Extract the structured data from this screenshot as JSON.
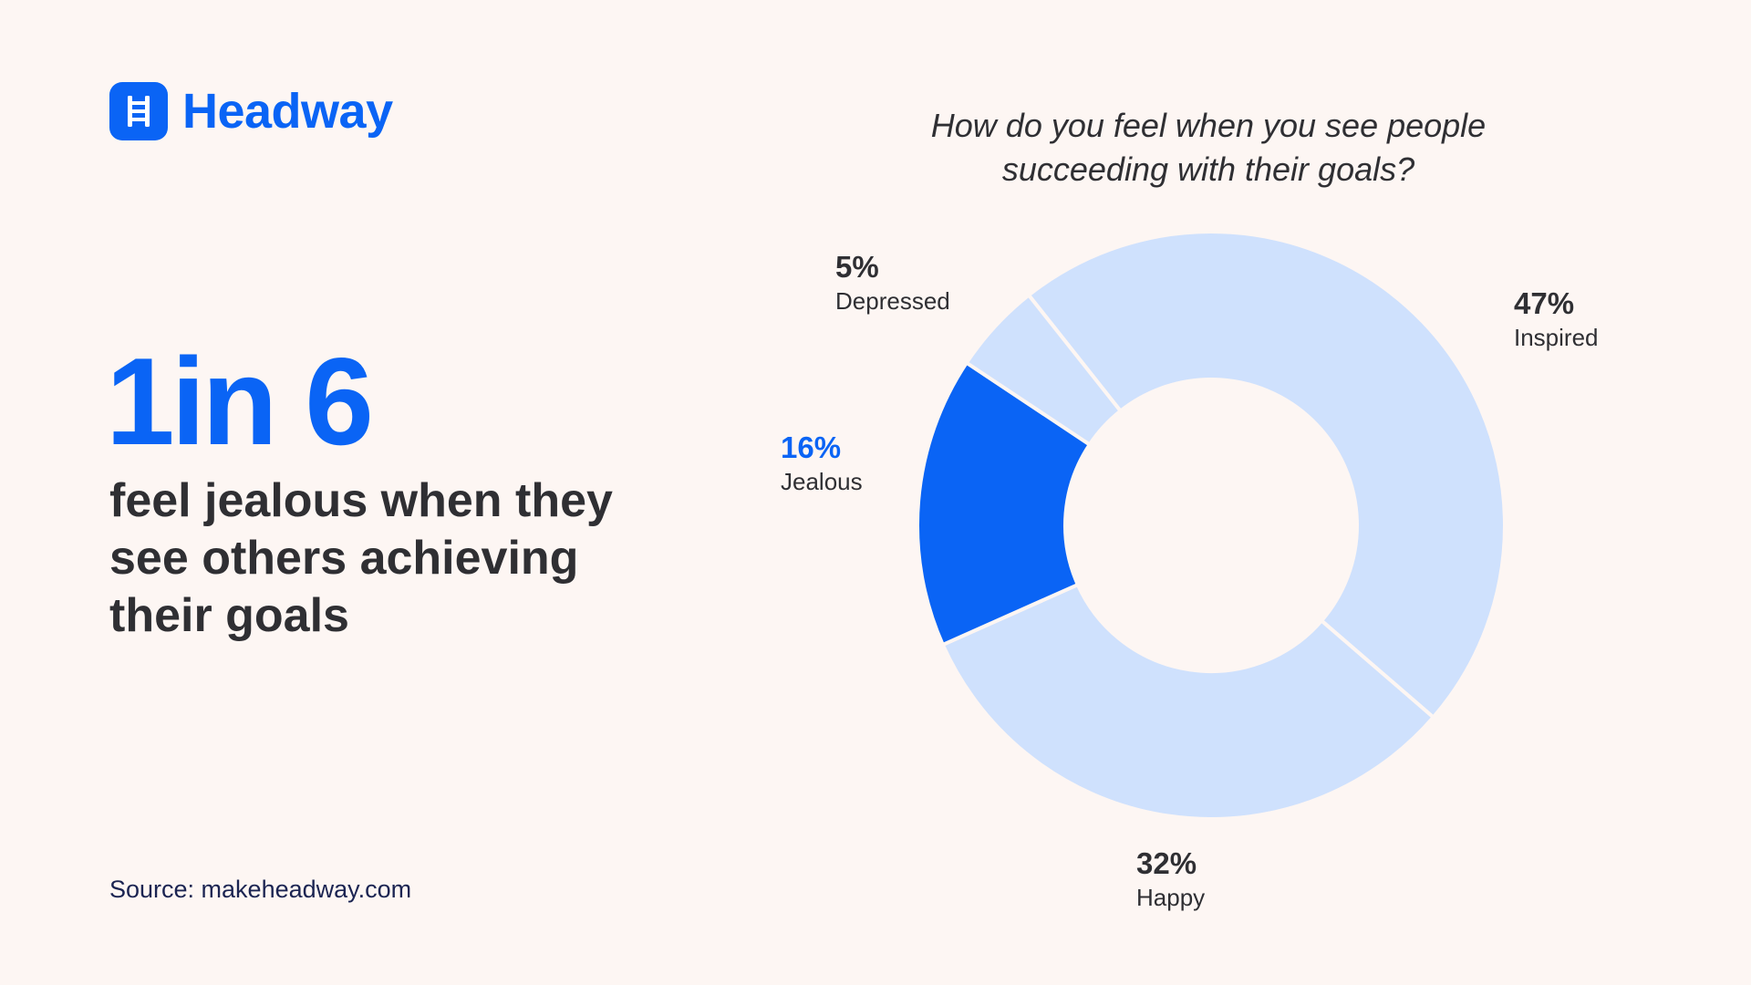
{
  "brand": {
    "name": "Headway",
    "icon": "ladder-icon",
    "color": "#0a64f5"
  },
  "headline": {
    "stat": "1in 6",
    "text": "feel jealous when they see others achieving their goals"
  },
  "source": "Source: makeheadway.com",
  "chart_data": {
    "type": "pie",
    "variant": "donut",
    "title": "How do you feel when you see people succeeding with their goals?",
    "slices": [
      {
        "label": "Inspired",
        "value": 47,
        "display": "47%",
        "color": "#cfe1fd"
      },
      {
        "label": "Happy",
        "value": 32,
        "display": "32%",
        "color": "#cfe1fd"
      },
      {
        "label": "Jealous",
        "value": 16,
        "display": "16%",
        "color": "#0a64f5",
        "highlight": true
      },
      {
        "label": "Depressed",
        "value": 5,
        "display": "5%",
        "color": "#cfe1fd"
      }
    ]
  }
}
